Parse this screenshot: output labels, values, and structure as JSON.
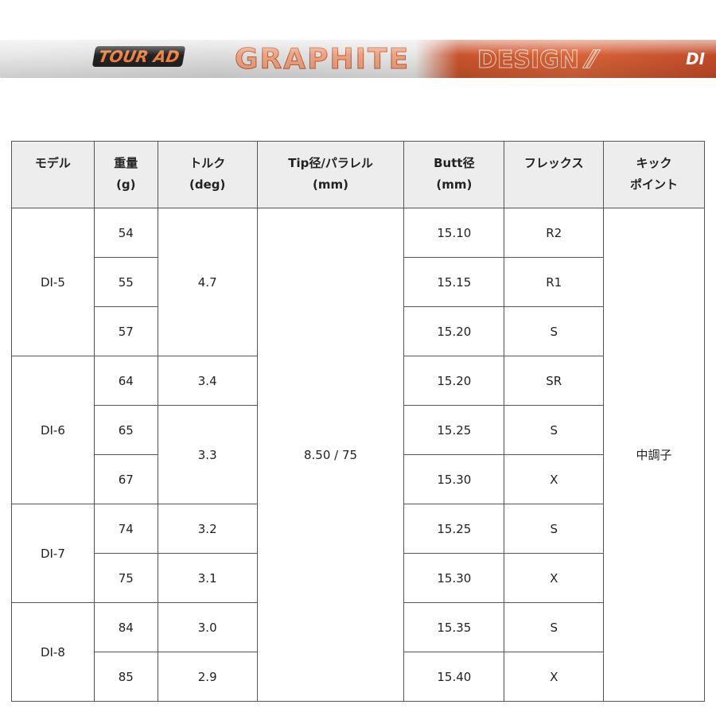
{
  "shaft_logo": {
    "tour": "TOUR AD",
    "graphite": "GRAPHITE",
    "design": "DESIGN",
    "di": "DI"
  },
  "headers": [
    [
      "モデル",
      ""
    ],
    [
      "重量",
      "(g)"
    ],
    [
      "トルク",
      "(deg)"
    ],
    [
      "Tip径/パラレル",
      "(mm)"
    ],
    [
      "Butt径",
      "(mm)"
    ],
    [
      "フレックス",
      ""
    ],
    [
      "キック",
      "ポイント"
    ]
  ],
  "models": [
    "DI-5",
    "DI-6",
    "DI-7",
    "DI-8"
  ],
  "weights": [
    "54",
    "55",
    "57",
    "64",
    "65",
    "67",
    "74",
    "75",
    "84",
    "85"
  ],
  "torques": [
    "4.7",
    "3.4",
    "3.3",
    "3.2",
    "3.1",
    "3.0",
    "2.9"
  ],
  "tip": "8.50 / 75",
  "butts": [
    "15.10",
    "15.15",
    "15.20",
    "15.20",
    "15.25",
    "15.30",
    "15.25",
    "15.30",
    "15.35",
    "15.40"
  ],
  "flex": [
    "R2",
    "R1",
    "S",
    "SR",
    "S",
    "X",
    "S",
    "X",
    "S",
    "X"
  ],
  "kick": "中調子"
}
